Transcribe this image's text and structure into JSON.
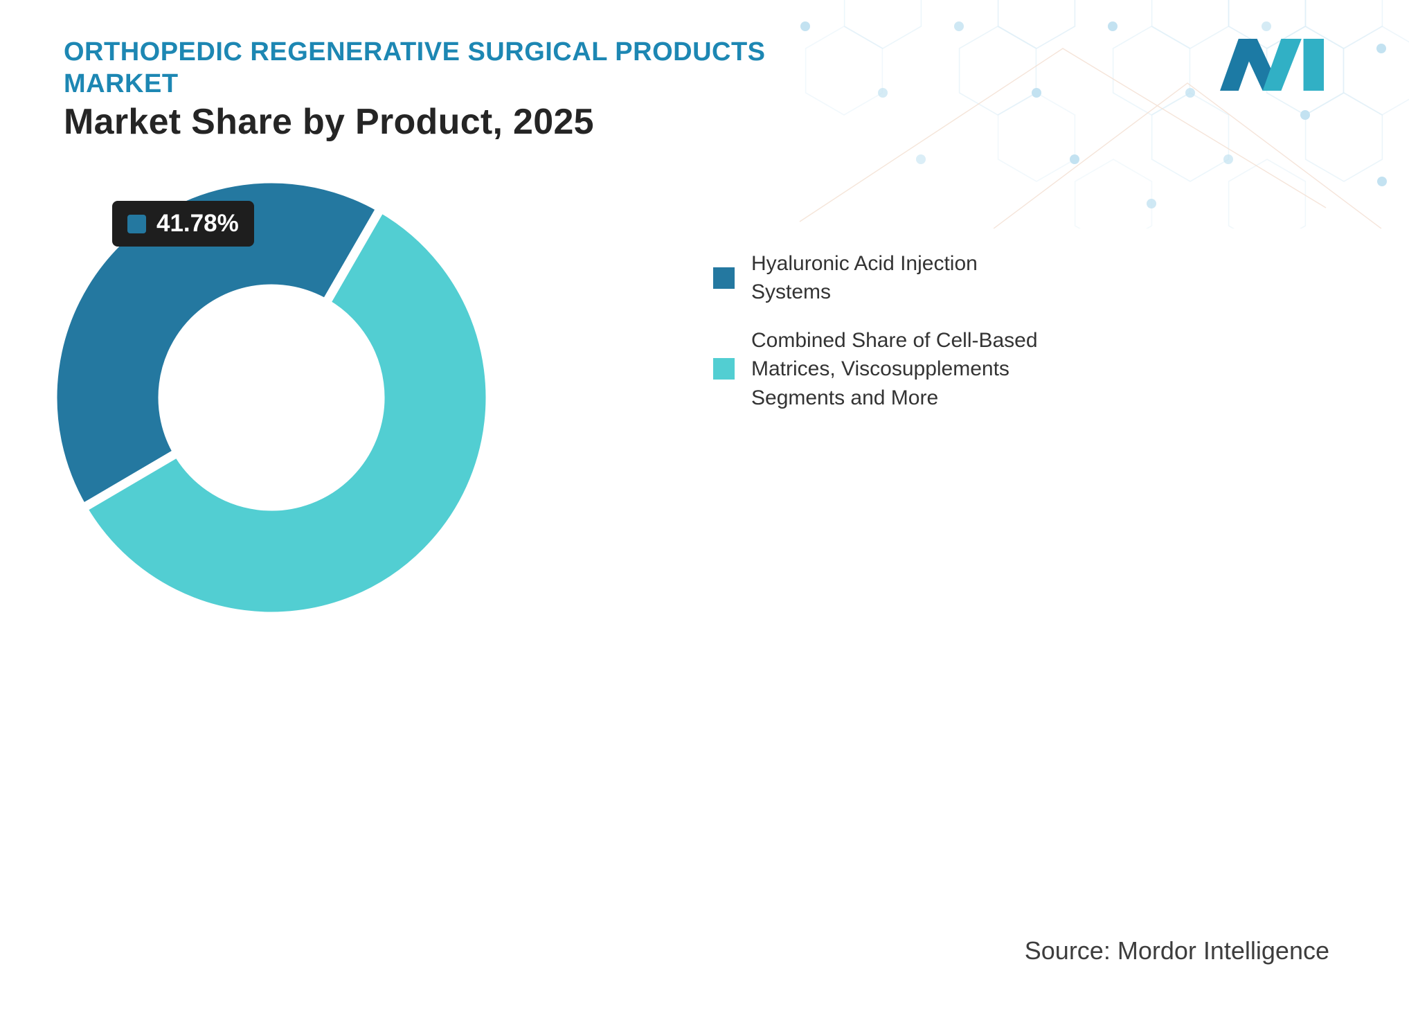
{
  "header": {
    "kicker_line1": "ORTHOPEDIC REGENERATIVE SURGICAL PRODUCTS",
    "kicker_line2": "MARKET",
    "title": "Market Share by Product, 2025"
  },
  "chart_data": {
    "type": "pie",
    "subtype": "donut",
    "title": "Market Share by Product, 2025",
    "categories": [
      "Hyaluronic Acid Injection Systems",
      "Combined Share of Cell-Based Matrices, Viscosupplements Segments and More"
    ],
    "values": [
      41.78,
      58.22
    ],
    "unit": "%",
    "colors": [
      "#2478a0",
      "#52ced2"
    ],
    "point_label": "41.78%",
    "start_angle_deg": 239.6,
    "inner_radius_ratio": 0.5,
    "legend_position": "right",
    "grid": false
  },
  "legend": {
    "items": [
      {
        "label": "Hyaluronic Acid Injection\nSystems",
        "color": "#2478a0"
      },
      {
        "label": "Combined Share of Cell-Based\nMatrices, Viscosupplements\nSegments and More",
        "color": "#52ced2"
      }
    ]
  },
  "footer": {
    "source": "Source: Mordor Intelligence"
  }
}
